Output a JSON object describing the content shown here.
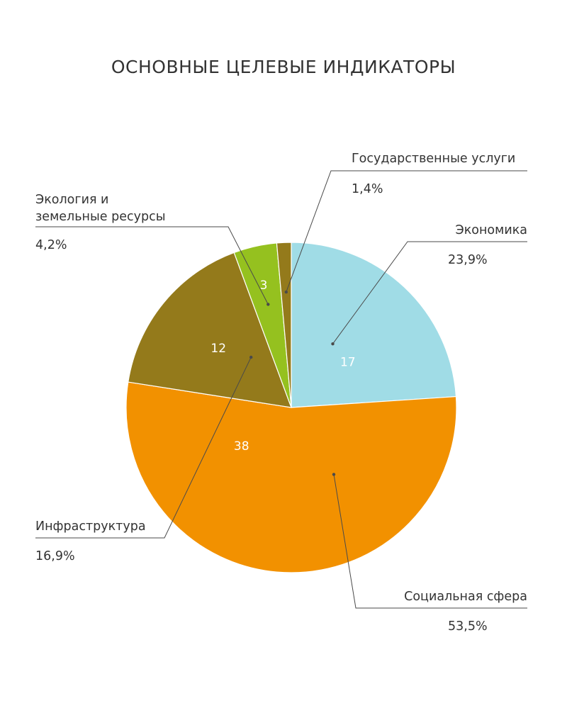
{
  "chart_data": {
    "type": "pie",
    "title": "ОСНОВНЫЕ ЦЕЛЕВЫЕ ИНДИКАТОРЫ",
    "slices": [
      {
        "name": "Экономика",
        "name_lines": [
          "Экономика"
        ],
        "value": 17,
        "value_label": "17",
        "percent": "23,9%",
        "color": "#a0dce6"
      },
      {
        "name": "Социальная сфера",
        "name_lines": [
          "Социальная сфера"
        ],
        "value": 38,
        "value_label": "38",
        "percent": "53,5%",
        "color": "#f29100"
      },
      {
        "name": "Инфраструктура",
        "name_lines": [
          "Инфраструктура"
        ],
        "value": 12,
        "value_label": "12",
        "percent": "16,9%",
        "color": "#947a1b"
      },
      {
        "name": "Экология и земельные ресурсы",
        "name_lines": [
          "Экология и",
          "земельные ресурсы"
        ],
        "value": 3,
        "value_label": "3",
        "percent": "4,2%",
        "color": "#95c11f"
      },
      {
        "name": "Государственные услуги",
        "name_lines": [
          "Государственные услуги"
        ],
        "value": 1,
        "value_label": "",
        "percent": "1,4%",
        "color": "#947a1b"
      }
    ]
  }
}
